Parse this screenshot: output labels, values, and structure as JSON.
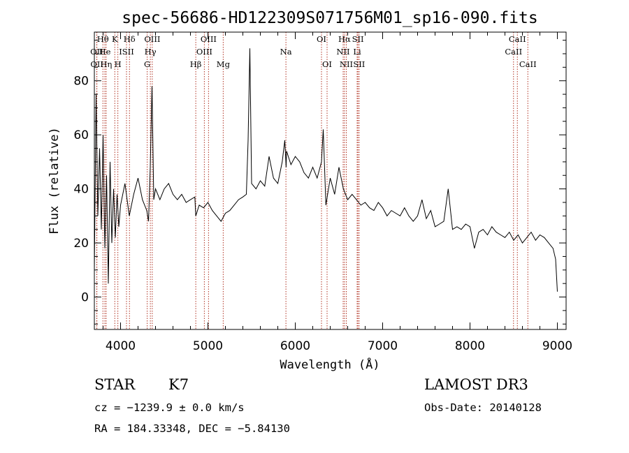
{
  "chart_data": {
    "type": "line",
    "title": "spec-56686-HD122309S071756M01_sp16-090.fits",
    "xlabel": "Wavelength (Å)",
    "ylabel": "Flux (relative)",
    "xlim": [
      3700,
      9100
    ],
    "ylim": [
      -12,
      98
    ],
    "xticks": [
      4000,
      5000,
      6000,
      7000,
      8000,
      9000
    ],
    "yticks": [
      0,
      20,
      40,
      60,
      80
    ],
    "series": [
      {
        "name": "spectrum",
        "x": [
          3700,
          3720,
          3740,
          3760,
          3780,
          3800,
          3820,
          3840,
          3860,
          3880,
          3900,
          3920,
          3940,
          3960,
          3980,
          4000,
          4050,
          4100,
          4150,
          4200,
          4250,
          4300,
          4320,
          4340,
          4360,
          4380,
          4400,
          4450,
          4500,
          4550,
          4600,
          4650,
          4700,
          4750,
          4800,
          4850,
          4861,
          4900,
          4950,
          5000,
          5050,
          5100,
          5150,
          5200,
          5250,
          5300,
          5350,
          5400,
          5440,
          5460,
          5480,
          5500,
          5550,
          5600,
          5650,
          5700,
          5750,
          5800,
          5850,
          5880,
          5895,
          5900,
          5950,
          6000,
          6050,
          6100,
          6150,
          6200,
          6250,
          6300,
          6320,
          6350,
          6400,
          6450,
          6500,
          6550,
          6600,
          6650,
          6700,
          6750,
          6800,
          6850,
          6900,
          6950,
          7000,
          7050,
          7100,
          7150,
          7200,
          7250,
          7300,
          7350,
          7400,
          7450,
          7500,
          7550,
          7600,
          7650,
          7700,
          7750,
          7800,
          7850,
          7900,
          7950,
          8000,
          8050,
          8100,
          8150,
          8200,
          8250,
          8300,
          8350,
          8400,
          8450,
          8500,
          8550,
          8600,
          8650,
          8700,
          8750,
          8800,
          8850,
          8900,
          8950,
          8980,
          9000
        ],
        "y": [
          10,
          75,
          30,
          55,
          25,
          60,
          18,
          45,
          5,
          50,
          20,
          40,
          22,
          38,
          26,
          34,
          42,
          30,
          38,
          44,
          36,
          32,
          28,
          48,
          78,
          36,
          40,
          36,
          40,
          42,
          38,
          36,
          38,
          35,
          36,
          37,
          30,
          34,
          33,
          35,
          32,
          30,
          28,
          31,
          32,
          34,
          36,
          37,
          38,
          58,
          92,
          42,
          40,
          43,
          41,
          52,
          44,
          42,
          50,
          58,
          48,
          54,
          49,
          52,
          50,
          46,
          44,
          48,
          44,
          50,
          62,
          34,
          44,
          38,
          48,
          40,
          36,
          38,
          36,
          34,
          35,
          33,
          32,
          35,
          33,
          30,
          32,
          31,
          30,
          33,
          30,
          28,
          30,
          36,
          29,
          32,
          26,
          27,
          28,
          40,
          25,
          26,
          25,
          27,
          26,
          18,
          24,
          25,
          23,
          26,
          24,
          23,
          22,
          24,
          21,
          23,
          20,
          22,
          24,
          21,
          23,
          22,
          20,
          18,
          14,
          2
        ]
      }
    ],
    "line_markers": [
      {
        "label": "Hθ",
        "wavelength": 3798,
        "row": 1
      },
      {
        "label": "OII",
        "wavelength": 3727,
        "row": 2
      },
      {
        "label": "OII",
        "wavelength": 3729,
        "row": 3
      },
      {
        "label": "He",
        "wavelength": 3820,
        "row": 2
      },
      {
        "label": "Hη",
        "wavelength": 3835,
        "row": 3
      },
      {
        "label": "K",
        "wavelength": 3934,
        "row": 1
      },
      {
        "label": "H",
        "wavelength": 3969,
        "row": 3
      },
      {
        "label": "Hδ",
        "wavelength": 4102,
        "row": 1
      },
      {
        "label": "ISII",
        "wavelength": 4068,
        "row": 2
      },
      {
        "label": "OIII",
        "wavelength": 4363,
        "row": 1
      },
      {
        "label": "Hγ",
        "wavelength": 4341,
        "row": 2
      },
      {
        "label": "G",
        "wavelength": 4305,
        "row": 3
      },
      {
        "label": "Hβ",
        "wavelength": 4861,
        "row": 3
      },
      {
        "label": "OIII",
        "wavelength": 5007,
        "row": 1
      },
      {
        "label": "OIII",
        "wavelength": 4959,
        "row": 2
      },
      {
        "label": "Mg",
        "wavelength": 5175,
        "row": 3
      },
      {
        "label": "Na",
        "wavelength": 5893,
        "row": 2
      },
      {
        "label": "OI",
        "wavelength": 6300,
        "row": 1
      },
      {
        "label": "OI",
        "wavelength": 6364,
        "row": 3
      },
      {
        "label": "Hα",
        "wavelength": 6563,
        "row": 1
      },
      {
        "label": "SII",
        "wavelength": 6717,
        "row": 1
      },
      {
        "label": "NII",
        "wavelength": 6548,
        "row": 2
      },
      {
        "label": "Li",
        "wavelength": 6708,
        "row": 2
      },
      {
        "label": "NII",
        "wavelength": 6584,
        "row": 3
      },
      {
        "label": "SII",
        "wavelength": 6731,
        "row": 3
      },
      {
        "label": "CaII",
        "wavelength": 8542,
        "row": 1
      },
      {
        "label": "CaII",
        "wavelength": 8498,
        "row": 2
      },
      {
        "label": "CaII",
        "wavelength": 8662,
        "row": 3
      }
    ]
  },
  "info": {
    "class_label": "STAR",
    "subclass": "K7",
    "survey": "LAMOST DR3",
    "cz": "cz = −1239.9 ± 0.0 km/s",
    "obs_date": "Obs-Date: 20140128",
    "coords": "RA = 184.33348, DEC =  −5.84130"
  },
  "colors": {
    "axis": "#000000",
    "spectrum": "#000000",
    "marker": "#b03020",
    "background": "#ffffff"
  }
}
